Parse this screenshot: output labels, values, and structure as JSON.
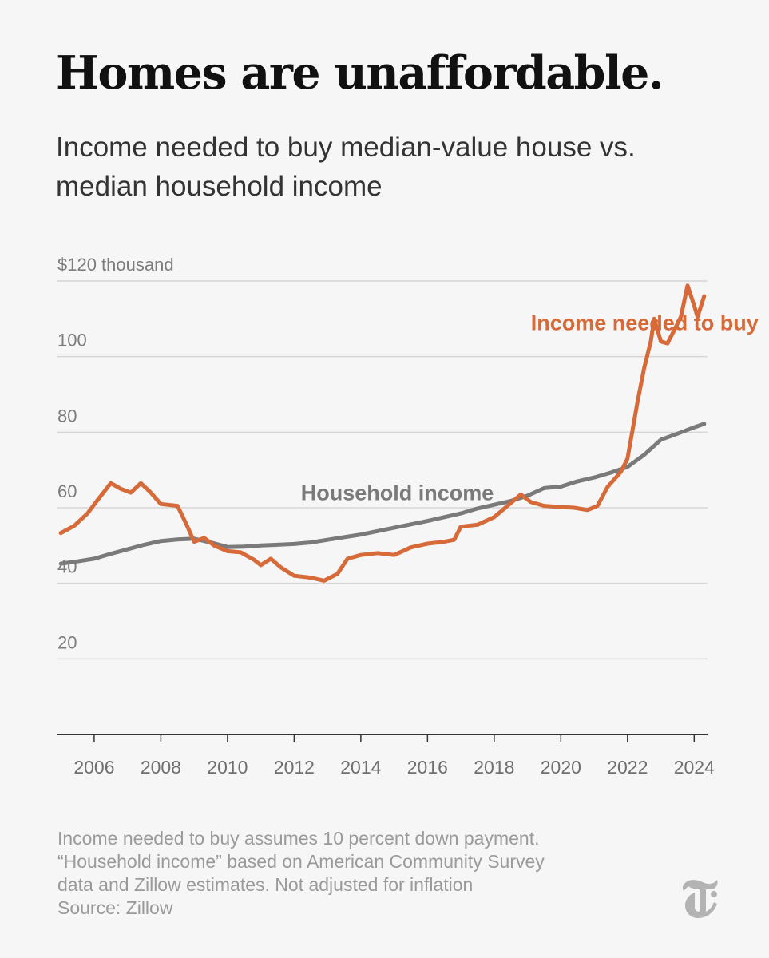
{
  "title": "Homes are unaffordable.",
  "subtitle": "Income needed to buy median-value house vs. median household income",
  "footnote": {
    "lines": [
      "Income needed to buy assumes 10 percent down payment.",
      "“Household income” based on American Community Survey",
      "data and Zillow estimates. Not adjusted for inflation",
      "Source: Zillow"
    ]
  },
  "logo": {
    "icon": "nyt-t-logo-icon",
    "color": "#b3b3b3"
  },
  "chart_data": {
    "type": "line",
    "title": "Homes are unaffordable.",
    "subtitle": "Income needed to buy median-value house vs. median household income",
    "xlim": [
      2004.9,
      2024.4
    ],
    "ylim": [
      0,
      120
    ],
    "grid": true,
    "y_ticks": [
      {
        "value": 120,
        "label": "$120 thousand"
      },
      {
        "value": 100,
        "label": "100"
      },
      {
        "value": 80,
        "label": "80"
      },
      {
        "value": 60,
        "label": "60"
      },
      {
        "value": 40,
        "label": "40"
      },
      {
        "value": 20,
        "label": "20"
      }
    ],
    "x_ticks": [
      {
        "value": 2006,
        "label": "2006"
      },
      {
        "value": 2008,
        "label": "2008"
      },
      {
        "value": 2010,
        "label": "2010"
      },
      {
        "value": 2012,
        "label": "2012"
      },
      {
        "value": 2014,
        "label": "2014"
      },
      {
        "value": 2016,
        "label": "2016"
      },
      {
        "value": 2018,
        "label": "2018"
      },
      {
        "value": 2020,
        "label": "2020"
      },
      {
        "value": 2022,
        "label": "2022"
      },
      {
        "value": 2024,
        "label": "2024"
      }
    ],
    "series": [
      {
        "name": "Household income",
        "color": "#7a7a7a",
        "label_anchor": {
          "x": 2012.2,
          "y": 62
        },
        "points": [
          [
            2005.0,
            45.2
          ],
          [
            2005.5,
            45.8
          ],
          [
            2006.0,
            46.5
          ],
          [
            2006.5,
            47.8
          ],
          [
            2007.0,
            49.0
          ],
          [
            2007.5,
            50.2
          ],
          [
            2008.0,
            51.2
          ],
          [
            2008.5,
            51.6
          ],
          [
            2009.0,
            51.8
          ],
          [
            2009.5,
            50.8
          ],
          [
            2010.0,
            49.6
          ],
          [
            2010.5,
            49.7
          ],
          [
            2011.0,
            50.0
          ],
          [
            2011.5,
            50.2
          ],
          [
            2012.0,
            50.4
          ],
          [
            2012.5,
            50.8
          ],
          [
            2013.0,
            51.5
          ],
          [
            2013.5,
            52.2
          ],
          [
            2014.0,
            52.9
          ],
          [
            2014.5,
            53.8
          ],
          [
            2015.0,
            54.7
          ],
          [
            2015.5,
            55.6
          ],
          [
            2016.0,
            56.5
          ],
          [
            2016.5,
            57.5
          ],
          [
            2017.0,
            58.5
          ],
          [
            2017.5,
            59.8
          ],
          [
            2018.0,
            60.8
          ],
          [
            2018.5,
            61.8
          ],
          [
            2019.0,
            63.2
          ],
          [
            2019.5,
            65.2
          ],
          [
            2020.0,
            65.6
          ],
          [
            2020.5,
            67.0
          ],
          [
            2021.0,
            68.0
          ],
          [
            2021.5,
            69.3
          ],
          [
            2022.0,
            70.8
          ],
          [
            2022.5,
            74.0
          ],
          [
            2023.0,
            78.0
          ],
          [
            2023.5,
            79.6
          ],
          [
            2024.0,
            81.3
          ],
          [
            2024.3,
            82.2
          ]
        ]
      },
      {
        "name": "Income needed to buy",
        "color": "#d66a38",
        "label_anchor": {
          "x": 2019.1,
          "y": 107
        },
        "points": [
          [
            2005.0,
            53.3
          ],
          [
            2005.4,
            55.2
          ],
          [
            2005.8,
            58.5
          ],
          [
            2006.1,
            62.0
          ],
          [
            2006.5,
            66.5
          ],
          [
            2006.8,
            65.0
          ],
          [
            2007.1,
            64.0
          ],
          [
            2007.4,
            66.5
          ],
          [
            2007.7,
            64.0
          ],
          [
            2008.0,
            61.0
          ],
          [
            2008.5,
            60.5
          ],
          [
            2008.8,
            55.0
          ],
          [
            2009.0,
            51.0
          ],
          [
            2009.3,
            52.0
          ],
          [
            2009.6,
            50.0
          ],
          [
            2010.0,
            48.5
          ],
          [
            2010.4,
            48.2
          ],
          [
            2010.8,
            46.2
          ],
          [
            2011.0,
            44.8
          ],
          [
            2011.3,
            46.5
          ],
          [
            2011.6,
            44.2
          ],
          [
            2012.0,
            42.0
          ],
          [
            2012.5,
            41.5
          ],
          [
            2012.9,
            40.7
          ],
          [
            2013.3,
            42.5
          ],
          [
            2013.6,
            46.5
          ],
          [
            2014.0,
            47.5
          ],
          [
            2014.5,
            48.0
          ],
          [
            2015.0,
            47.5
          ],
          [
            2015.5,
            49.5
          ],
          [
            2016.0,
            50.5
          ],
          [
            2016.5,
            51.0
          ],
          [
            2016.8,
            51.5
          ],
          [
            2017.0,
            55.0
          ],
          [
            2017.5,
            55.5
          ],
          [
            2018.0,
            57.5
          ],
          [
            2018.4,
            60.5
          ],
          [
            2018.8,
            63.5
          ],
          [
            2019.1,
            61.5
          ],
          [
            2019.5,
            60.5
          ],
          [
            2020.0,
            60.2
          ],
          [
            2020.4,
            60.0
          ],
          [
            2020.8,
            59.4
          ],
          [
            2021.1,
            60.5
          ],
          [
            2021.4,
            65.5
          ],
          [
            2021.8,
            69.5
          ],
          [
            2022.0,
            73.0
          ],
          [
            2022.3,
            88.0
          ],
          [
            2022.5,
            97.0
          ],
          [
            2022.7,
            104.0
          ],
          [
            2022.8,
            110.0
          ],
          [
            2023.0,
            104.0
          ],
          [
            2023.2,
            103.5
          ],
          [
            2023.4,
            107.0
          ],
          [
            2023.6,
            110.5
          ],
          [
            2023.8,
            118.8
          ],
          [
            2024.0,
            113.5
          ],
          [
            2024.1,
            110.5
          ],
          [
            2024.3,
            116.0
          ]
        ]
      }
    ]
  }
}
